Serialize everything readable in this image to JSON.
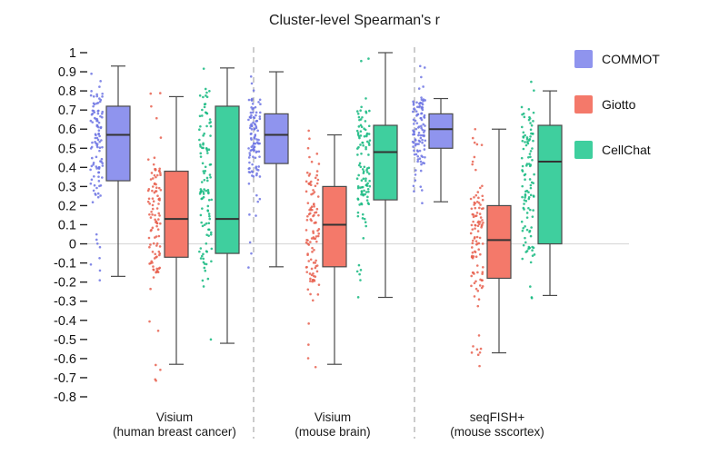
{
  "chart_data": {
    "type": "boxplot",
    "title": "Cluster-level Spearman's r",
    "ylabel": "",
    "ylim": [
      -0.8,
      1
    ],
    "ytick_step": 0.1,
    "legend_position": "upper right",
    "grid": "zero-line-only",
    "groups": [
      {
        "label": [
          "Visium",
          "(human breast cancer)"
        ]
      },
      {
        "label": [
          "Visium",
          "(mouse brain)"
        ]
      },
      {
        "label": [
          "seqFISH+",
          "(mouse sscortex)"
        ]
      }
    ],
    "series": [
      {
        "name": "COMMOT",
        "color": "#8f94ee",
        "point_color": "#6d74e3"
      },
      {
        "name": "Giotto",
        "color": "#f4796a",
        "point_color": "#e8604f"
      },
      {
        "name": "CellChat",
        "color": "#3fcf9e",
        "point_color": "#14b87f"
      }
    ],
    "stats": [
      [
        {
          "whisker_low": -0.17,
          "q1": 0.33,
          "median": 0.57,
          "q3": 0.72,
          "whisker_high": 0.93,
          "points_min": -0.2,
          "points_max": 0.95
        },
        {
          "whisker_low": -0.63,
          "q1": -0.07,
          "median": 0.13,
          "q3": 0.38,
          "whisker_high": 0.77,
          "points_min": -0.75,
          "points_max": 0.8
        },
        {
          "whisker_low": -0.52,
          "q1": -0.05,
          "median": 0.13,
          "q3": 0.72,
          "whisker_high": 0.92,
          "points_min": -0.55,
          "points_max": 0.93
        }
      ],
      [
        {
          "whisker_low": -0.12,
          "q1": 0.42,
          "median": 0.57,
          "q3": 0.68,
          "whisker_high": 0.9,
          "points_min": -0.15,
          "points_max": 0.9
        },
        {
          "whisker_low": -0.63,
          "q1": -0.12,
          "median": 0.1,
          "q3": 0.3,
          "whisker_high": 0.57,
          "points_min": -0.65,
          "points_max": 0.6
        },
        {
          "whisker_low": -0.28,
          "q1": 0.23,
          "median": 0.48,
          "q3": 0.62,
          "whisker_high": 1.0,
          "points_min": -0.3,
          "points_max": 1.0
        }
      ],
      [
        {
          "whisker_low": 0.22,
          "q1": 0.5,
          "median": 0.6,
          "q3": 0.68,
          "whisker_high": 0.76,
          "points_min": 0.2,
          "points_max": 0.93
        },
        {
          "whisker_low": -0.57,
          "q1": -0.18,
          "median": 0.02,
          "q3": 0.2,
          "whisker_high": 0.6,
          "points_min": -0.65,
          "points_max": 0.6
        },
        {
          "whisker_low": -0.27,
          "q1": 0.0,
          "median": 0.43,
          "q3": 0.62,
          "whisker_high": 0.8,
          "points_min": -0.3,
          "points_max": 0.85
        }
      ]
    ]
  }
}
